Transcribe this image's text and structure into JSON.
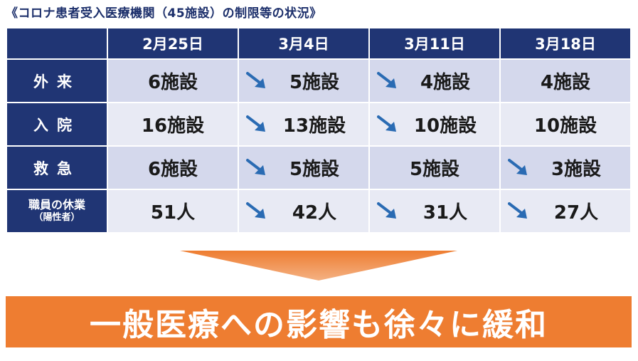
{
  "title": "《コロナ患者受入医療機関（45施設）の制限等の状況》",
  "table": {
    "columns": [
      "",
      "2月25日",
      "3月4日",
      "3月11日",
      "3月18日"
    ],
    "rows": [
      {
        "label": "外来",
        "label_sub": "",
        "cells": [
          {
            "value": "6施設",
            "decrease": false
          },
          {
            "value": "5施設",
            "decrease": true
          },
          {
            "value": "4施設",
            "decrease": true
          },
          {
            "value": "4施設",
            "decrease": false
          }
        ]
      },
      {
        "label": "入院",
        "label_sub": "",
        "cells": [
          {
            "value": "16施設",
            "decrease": false
          },
          {
            "value": "13施設",
            "decrease": true
          },
          {
            "value": "10施設",
            "decrease": true
          },
          {
            "value": "10施設",
            "decrease": false
          }
        ]
      },
      {
        "label": "救急",
        "label_sub": "",
        "cells": [
          {
            "value": "6施設",
            "decrease": false
          },
          {
            "value": "5施設",
            "decrease": true
          },
          {
            "value": "5施設",
            "decrease": false
          },
          {
            "value": "3施設",
            "decrease": true
          }
        ]
      },
      {
        "label": "職員の休業",
        "label_sub": "（陽性者）",
        "cells": [
          {
            "value": "51人",
            "decrease": false
          },
          {
            "value": "42人",
            "decrease": true
          },
          {
            "value": "31人",
            "decrease": true
          },
          {
            "value": "27人",
            "decrease": true
          }
        ]
      }
    ]
  },
  "banner": "一般医療への影響も徐々に緩和",
  "colors": {
    "header": "#203574",
    "row_dark": "#d4d8ec",
    "row_light": "#e8eaf4",
    "arrow_blue": "#2a6bb3",
    "banner": "#ee7d31"
  },
  "icons": {
    "decrease": "down-right-arrow-icon",
    "transition": "down-arrow-icon"
  }
}
